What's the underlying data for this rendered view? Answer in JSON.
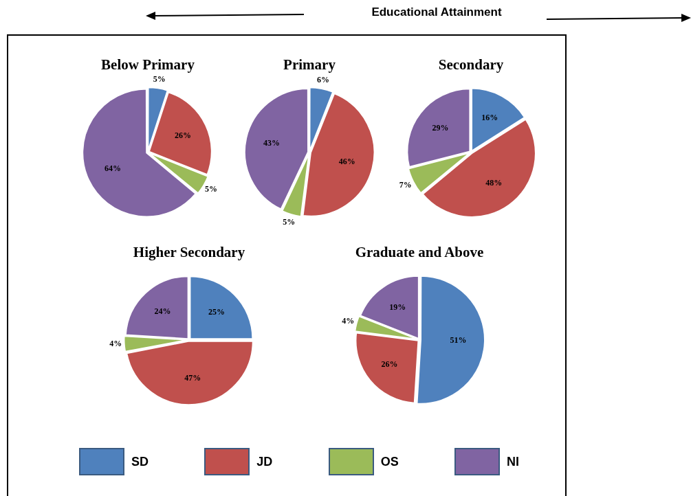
{
  "chart_data": [
    {
      "type": "pie",
      "title": "Below Primary",
      "values": [
        5,
        26,
        5,
        64
      ],
      "value_labels": [
        "5%",
        "26%",
        "5%",
        "64%"
      ],
      "colors": [
        "#4f81bd",
        "#c0504d",
        "#9bbb59",
        "#8064a2"
      ],
      "annotations": [
        "Educational Attainment"
      ]
    },
    {
      "type": "pie",
      "title": "Primary",
      "values": [
        6,
        46,
        5,
        43
      ],
      "value_labels": [
        "6%",
        "46%",
        "5%",
        "43%"
      ],
      "colors": [
        "#4f81bd",
        "#c0504d",
        "#9bbb59",
        "#8064a2"
      ]
    },
    {
      "type": "pie",
      "title": "Secondary",
      "values": [
        16,
        48,
        7,
        29
      ],
      "value_labels": [
        "16%",
        "48%",
        "7%",
        "29%"
      ],
      "colors": [
        "#4f81bd",
        "#c0504d",
        "#9bbb59",
        "#8064a2"
      ]
    },
    {
      "type": "pie",
      "title": "Higher Secondary",
      "values": [
        25,
        47,
        4,
        24
      ],
      "value_labels": [
        "25%",
        "47%",
        "4%",
        "24%"
      ],
      "colors": [
        "#4f81bd",
        "#c0504d",
        "#9bbb59",
        "#8064a2"
      ]
    },
    {
      "type": "pie",
      "title": "Graduate and Above",
      "categories": [
        "SD",
        "JD",
        "OS",
        "NI"
      ],
      "values": [
        51,
        26,
        4,
        19
      ],
      "value_labels": [
        "51%",
        "26%",
        "4%",
        "19%"
      ],
      "colors": [
        "#4f81bd",
        "#c0504d",
        "#9bbb59",
        "#8064a2"
      ],
      "legend": "bottom"
    }
  ]
}
